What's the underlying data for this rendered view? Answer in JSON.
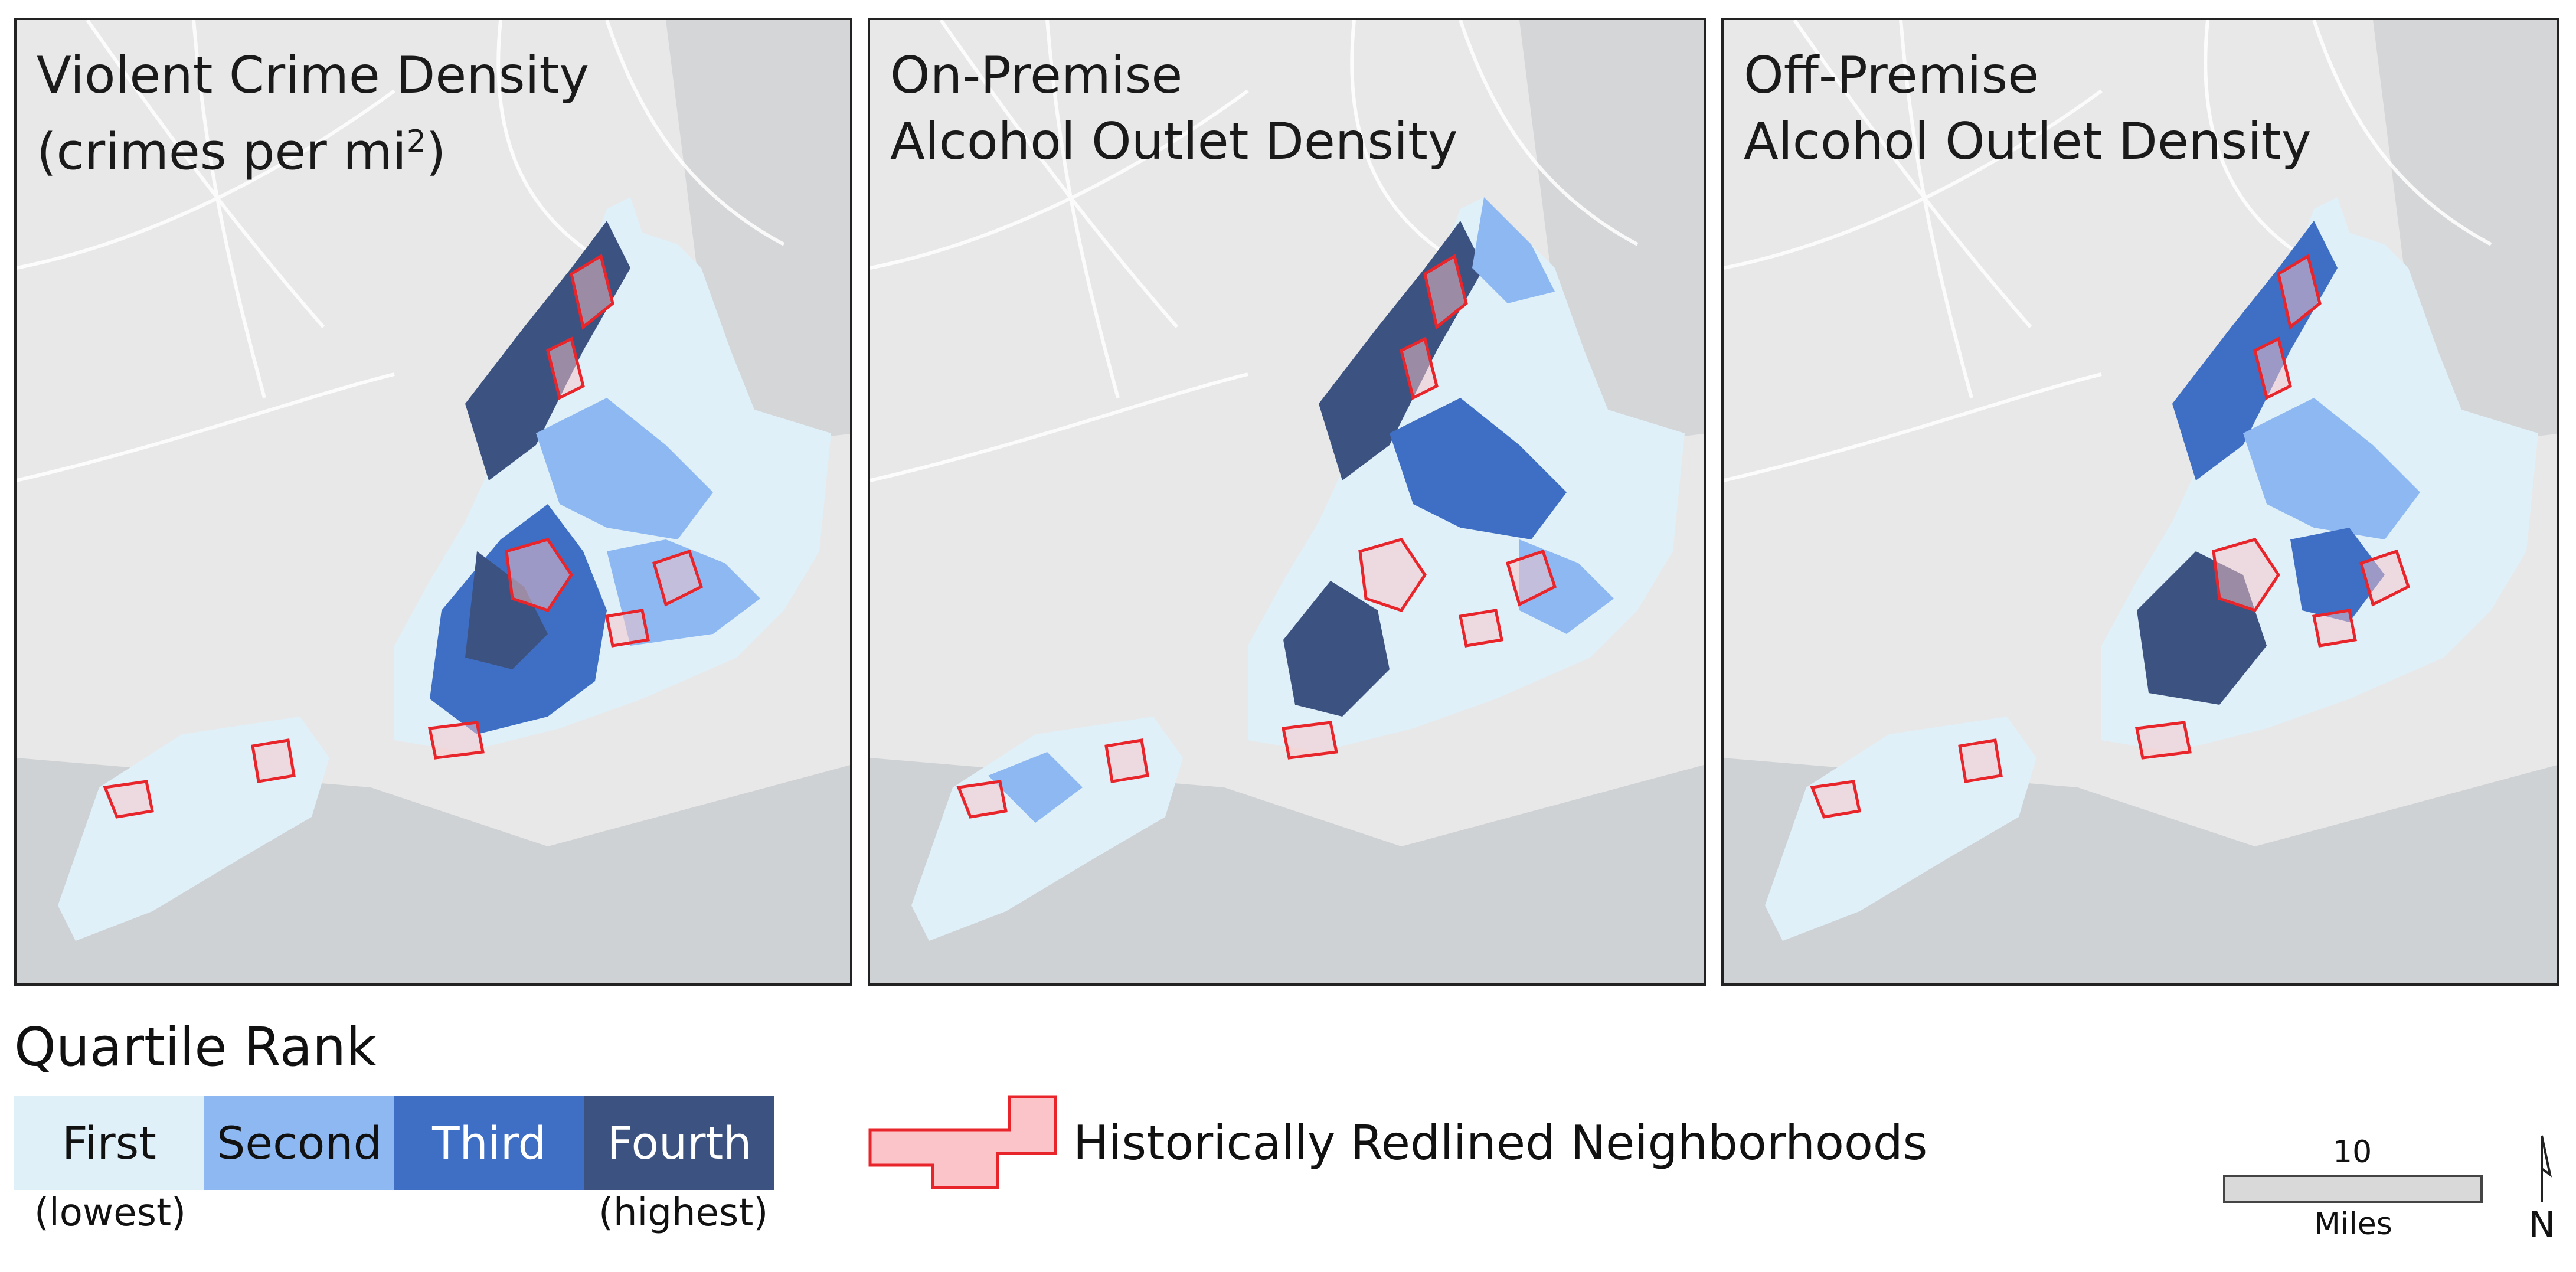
{
  "panels": [
    {
      "title_line1": "Violent Crime Density",
      "title_line2": "(crimes per mi",
      "title_sup": "2",
      "title_close": ")"
    },
    {
      "title_line1": "On-Premise",
      "title_line2": "Alcohol Outlet Density"
    },
    {
      "title_line1": "Off-Premise",
      "title_line2": "Alcohol Outlet Density"
    }
  ],
  "legend": {
    "title": "Quartile Rank",
    "quartiles": [
      {
        "label": "First",
        "color": "#dff0f9",
        "text_color": "#111111"
      },
      {
        "label": "Second",
        "color": "#8db8f2",
        "text_color": "#111111"
      },
      {
        "label": "Third",
        "color": "#3f6fc4",
        "text_color": "#ffffff"
      },
      {
        "label": "Fourth",
        "color": "#3c5382",
        "text_color": "#ffffff"
      }
    ],
    "low_label": "(lowest)",
    "high_label": "(highest)",
    "redline_label": "Historically Redlined Neighborhoods",
    "redline_fill": "#fbc4c8",
    "redline_stroke": "#e8252b"
  },
  "scale": {
    "value": "10",
    "unit": "Miles"
  },
  "north_arrow": {
    "letter": "N",
    "icon": "north-arrow-icon"
  }
}
